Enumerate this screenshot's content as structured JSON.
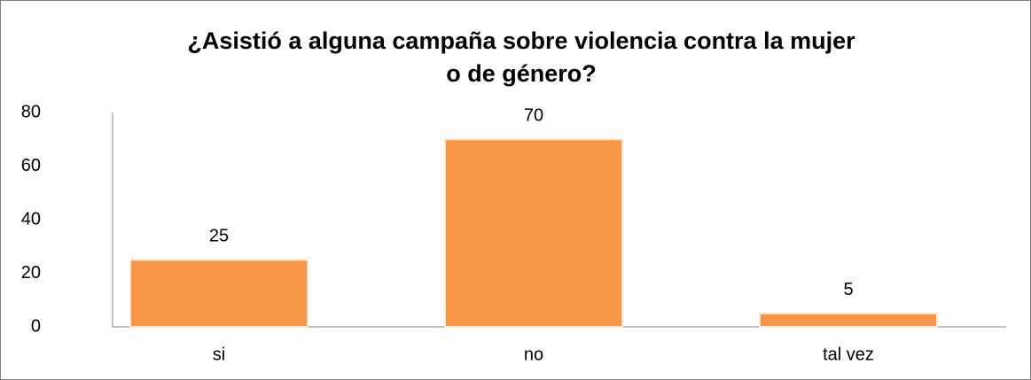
{
  "chart_data": {
    "type": "bar",
    "title": [
      "¿Asistió a alguna campaña sobre violencia contra la mujer",
      "o de género?"
    ],
    "categories": [
      "si",
      "no",
      "tal vez"
    ],
    "values": [
      25,
      70,
      5
    ],
    "color": "#f79646",
    "ylim": [
      0,
      80
    ],
    "yticks": [
      0,
      20,
      40,
      60,
      80
    ],
    "grid": false,
    "data_labels": true
  }
}
